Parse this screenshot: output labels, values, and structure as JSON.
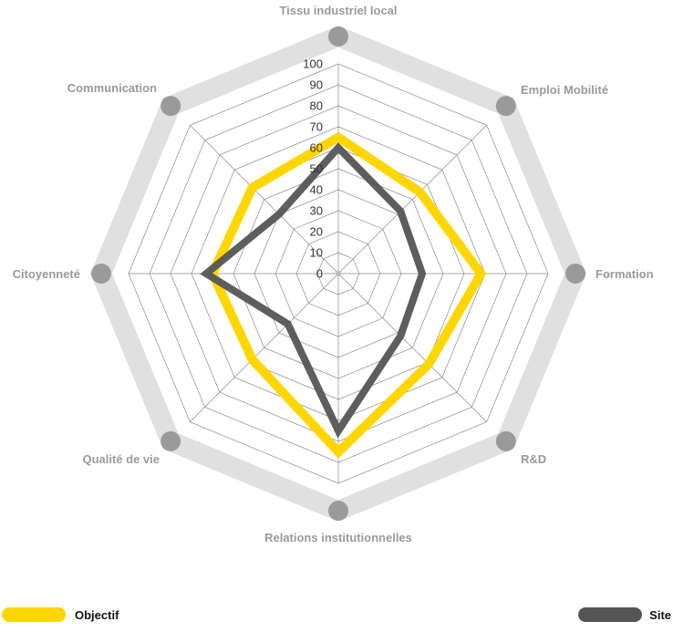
{
  "chart_data": {
    "type": "radar",
    "axes": [
      "Tissu industriel local",
      "Emploi Mobilité",
      "Formation",
      "R&D",
      "Relations institutionnelles",
      "Qualité de vie",
      "Citoyenneté",
      "Communication"
    ],
    "ticks": [
      "0",
      "10",
      "20",
      "30",
      "40",
      "50",
      "60",
      "70",
      "80",
      "90",
      "100"
    ],
    "range": [
      0,
      100
    ],
    "grid": true,
    "legend_position": "bottom",
    "series": [
      {
        "name": "Objectif",
        "color": "#ffd600",
        "values": [
          65,
          55,
          68,
          61,
          85,
          58,
          60,
          58
        ]
      },
      {
        "name": "Site",
        "color": "#555555",
        "values": [
          60,
          42,
          40,
          42,
          75,
          34,
          63,
          40
        ]
      }
    ],
    "outer_ring_color": "#e0e0e0",
    "marker_color": "#9a9a9a"
  }
}
